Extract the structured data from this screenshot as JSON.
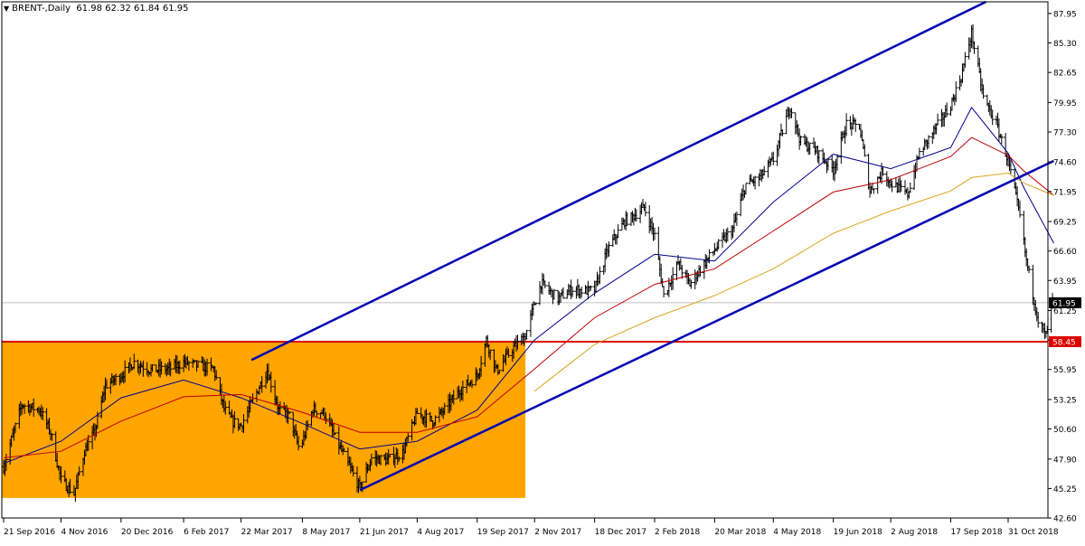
{
  "header": {
    "symbol": "BRENT-,Daily",
    "ohlc": "61.98 62.32 61.84 61.95"
  },
  "colors": {
    "background": "#ffffff",
    "bar": "#000000",
    "ma_fast": "#00008b",
    "ma_mid": "#c00000",
    "ma_slow": "#daa520",
    "channel": "#0000b4",
    "support": "#dd0000",
    "zone": "#ffa500",
    "axis_text": "#000000",
    "current_bg": "#000000",
    "support_bg": "#dd0000"
  },
  "chart_data": {
    "type": "line",
    "title": "BRENT-,Daily",
    "ylim": [
      42.6,
      89.0
    ],
    "grid": false,
    "y_ticks": [
      "87.95",
      "85.30",
      "82.65",
      "79.95",
      "77.30",
      "74.60",
      "71.95",
      "69.25",
      "66.60",
      "63.95",
      "61.25",
      "58.60",
      "55.95",
      "53.25",
      "50.60",
      "47.90",
      "45.25",
      "42.60"
    ],
    "x_ticks": [
      "21 Sep 2016",
      "4 Nov 2016",
      "20 Dec 2016",
      "6 Feb 2017",
      "22 Mar 2017",
      "8 May 2017",
      "21 Jun 2017",
      "4 Aug 2017",
      "19 Sep 2017",
      "2 Nov 2017",
      "18 Dec 2017",
      "2 Feb 2018",
      "20 Mar 2018",
      "4 May 2018",
      "19 Jun 2018",
      "2 Aug 2018",
      "17 Sep 2018",
      "31 Oct 2018"
    ],
    "price_anchors": [
      [
        "21 Sep 2016",
        47.2
      ],
      [
        "5 Oct 2016",
        52.8
      ],
      [
        "19 Oct 2016",
        52.3
      ],
      [
        "27 Oct 2016",
        50.3
      ],
      [
        "4 Nov 2016",
        46.0
      ],
      [
        "14 Nov 2016",
        44.8
      ],
      [
        "22 Nov 2016",
        48.6
      ],
      [
        "30 Nov 2016",
        50.4
      ],
      [
        "8 Dec 2016",
        54.5
      ],
      [
        "20 Dec 2016",
        55.4
      ],
      [
        "30 Dec 2016",
        56.6
      ],
      [
        "12 Jan 2017",
        55.9
      ],
      [
        "26 Jan 2017",
        56.0
      ],
      [
        "6 Feb 2017",
        56.6
      ],
      [
        "17 Feb 2017",
        56.3
      ],
      [
        "1 Mar 2017",
        56.0
      ],
      [
        "9 Mar 2017",
        52.4
      ],
      [
        "15 Mar 2017",
        51.3
      ],
      [
        "22 Mar 2017",
        50.9
      ],
      [
        "30 Mar 2017",
        52.9
      ],
      [
        "11 Apr 2017",
        55.9
      ],
      [
        "20 Apr 2017",
        52.3
      ],
      [
        "28 Apr 2017",
        51.8
      ],
      [
        "5 May 2017",
        49.0
      ],
      [
        "8 May 2017",
        49.4
      ],
      [
        "16 May 2017",
        52.4
      ],
      [
        "25 May 2017",
        52.0
      ],
      [
        "2 Jun 2017",
        49.8
      ],
      [
        "14 Jun 2017",
        47.0
      ],
      [
        "21 Jun 2017",
        45.3
      ],
      [
        "30 Jun 2017",
        48.0
      ],
      [
        "12 Jul 2017",
        47.8
      ],
      [
        "24 Jul 2017",
        48.5
      ],
      [
        "4 Aug 2017",
        52.0
      ],
      [
        "16 Aug 2017",
        51.3
      ],
      [
        "24 Aug 2017",
        52.2
      ],
      [
        "6 Sep 2017",
        54.1
      ],
      [
        "19 Sep 2017",
        55.4
      ],
      [
        "26 Sep 2017",
        58.6
      ],
      [
        "4 Oct 2017",
        55.8
      ],
      [
        "16 Oct 2017",
        57.8
      ],
      [
        "26 Oct 2017",
        59.0
      ],
      [
        "2 Nov 2017",
        61.9
      ],
      [
        "7 Nov 2017",
        63.7
      ],
      [
        "20 Nov 2017",
        62.3
      ],
      [
        "1 Dec 2017",
        63.2
      ],
      [
        "11 Dec 2017",
        63.0
      ],
      [
        "18 Dec 2017",
        63.1
      ],
      [
        "28 Dec 2017",
        66.7
      ],
      [
        "10 Jan 2018",
        69.3
      ],
      [
        "15 Jan 2018",
        69.6
      ],
      [
        "25 Jan 2018",
        70.5
      ],
      [
        "2 Feb 2018",
        68.0
      ],
      [
        "9 Feb 2018",
        62.6
      ],
      [
        "20 Feb 2018",
        65.5
      ],
      [
        "1 Mar 2018",
        63.6
      ],
      [
        "9 Mar 2018",
        65.0
      ],
      [
        "20 Mar 2018",
        66.7
      ],
      [
        "3 Apr 2018",
        68.6
      ],
      [
        "13 Apr 2018",
        72.6
      ],
      [
        "23 Apr 2018",
        73.1
      ],
      [
        "4 May 2018",
        74.8
      ],
      [
        "15 May 2018",
        78.9
      ],
      [
        "17 May 2018",
        79.6
      ],
      [
        "25 May 2018",
        76.4
      ],
      [
        "5 Jun 2018",
        75.7
      ],
      [
        "19 Jun 2018",
        73.9
      ],
      [
        "29 Jun 2018",
        78.0
      ],
      [
        "9 Jul 2018",
        77.8
      ],
      [
        "17 Jul 2018",
        72.0
      ],
      [
        "27 Jul 2018",
        73.8
      ],
      [
        "2 Aug 2018",
        72.7
      ],
      [
        "15 Aug 2018",
        71.7
      ],
      [
        "24 Aug 2018",
        75.4
      ],
      [
        "4 Sep 2018",
        77.4
      ],
      [
        "17 Sep 2018",
        79.7
      ],
      [
        "25 Sep 2018",
        82.3
      ],
      [
        "3 Oct 2018",
        86.2
      ],
      [
        "12 Oct 2018",
        80.4
      ],
      [
        "22 Oct 2018",
        78.0
      ],
      [
        "31 Oct 2018",
        74.7
      ],
      [
        "9 Nov 2018",
        69.7
      ],
      [
        "14 Nov 2018",
        65.7
      ],
      [
        "23 Nov 2018",
        60.4
      ],
      [
        "29 Nov 2018",
        58.9
      ],
      [
        "3 Dec 2018",
        61.8
      ],
      [
        "5 Dec 2018",
        61.95
      ]
    ],
    "moving_averages": [
      {
        "name": "MA fast",
        "color_key": "ma_fast",
        "points": [
          [
            "21 Sep 2016",
            47.5
          ],
          [
            "4 Nov 2016",
            49.5
          ],
          [
            "20 Dec 2016",
            53.4
          ],
          [
            "6 Feb 2017",
            55.0
          ],
          [
            "22 Mar 2017",
            53.4
          ],
          [
            "8 May 2017",
            51.1
          ],
          [
            "21 Jun 2017",
            48.8
          ],
          [
            "4 Aug 2017",
            49.5
          ],
          [
            "19 Sep 2017",
            52.3
          ],
          [
            "2 Nov 2017",
            58.6
          ],
          [
            "18 Dec 2017",
            62.8
          ],
          [
            "2 Feb 2018",
            66.3
          ],
          [
            "20 Mar 2018",
            65.7
          ],
          [
            "4 May 2018",
            71.0
          ],
          [
            "19 Jun 2018",
            75.3
          ],
          [
            "2 Aug 2018",
            74.0
          ],
          [
            "17 Sep 2018",
            75.9
          ],
          [
            "3 Oct 2018",
            79.5
          ],
          [
            "31 Oct 2018",
            75.4
          ],
          [
            "12 Nov 2018",
            72.3
          ],
          [
            "5 Dec 2018",
            67.3
          ]
        ]
      },
      {
        "name": "MA mid",
        "color_key": "ma_mid",
        "points": [
          [
            "21 Sep 2016",
            48.0
          ],
          [
            "4 Nov 2016",
            48.6
          ],
          [
            "20 Dec 2016",
            51.3
          ],
          [
            "6 Feb 2017",
            53.5
          ],
          [
            "22 Mar 2017",
            53.7
          ],
          [
            "8 May 2017",
            52.1
          ],
          [
            "21 Jun 2017",
            50.3
          ],
          [
            "4 Aug 2017",
            50.3
          ],
          [
            "19 Sep 2017",
            51.7
          ],
          [
            "2 Nov 2017",
            56.0
          ],
          [
            "18 Dec 2017",
            60.6
          ],
          [
            "2 Feb 2018",
            63.6
          ],
          [
            "20 Mar 2018",
            65.0
          ],
          [
            "4 May 2018",
            68.4
          ],
          [
            "19 Jun 2018",
            71.9
          ],
          [
            "2 Aug 2018",
            73.0
          ],
          [
            "17 Sep 2018",
            75.1
          ],
          [
            "3 Oct 2018",
            76.8
          ],
          [
            "31 Oct 2018",
            75.2
          ],
          [
            "12 Nov 2018",
            73.8
          ],
          [
            "5 Dec 2018",
            71.6
          ]
        ]
      },
      {
        "name": "MA slow",
        "color_key": "ma_slow",
        "points": [
          [
            "2 Nov 2017",
            54.0
          ],
          [
            "18 Dec 2017",
            58.2
          ],
          [
            "2 Feb 2018",
            60.6
          ],
          [
            "20 Mar 2018",
            62.6
          ],
          [
            "4 May 2018",
            65.0
          ],
          [
            "19 Jun 2018",
            68.2
          ],
          [
            "2 Aug 2018",
            70.2
          ],
          [
            "17 Sep 2018",
            72.0
          ],
          [
            "3 Oct 2018",
            73.2
          ],
          [
            "31 Oct 2018",
            73.6
          ],
          [
            "12 Nov 2018",
            72.7
          ],
          [
            "5 Dec 2018",
            71.6
          ]
        ]
      }
    ],
    "channel_lines": [
      {
        "name": "upper channel",
        "from": [
          "30 Mar 2017",
          56.8
        ],
        "to": [
          "14 Oct 2018",
          89.0
        ]
      },
      {
        "name": "lower channel",
        "from": [
          "21 Jun 2017",
          45.1
        ],
        "to": [
          "5 Dec 2018",
          74.7
        ]
      }
    ],
    "support_line": {
      "value": 58.45,
      "label": "58.45"
    },
    "current_price": {
      "value": 61.95,
      "label": "61.95"
    },
    "highlight_zone": {
      "from": "21 Sep 2016",
      "to": "26 Oct 2017",
      "y_from": 44.4,
      "y_to": 58.45
    }
  }
}
